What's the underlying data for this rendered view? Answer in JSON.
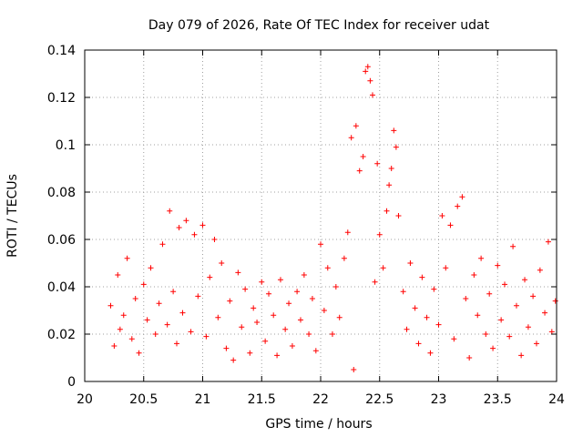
{
  "chart_data": {
    "type": "scatter",
    "title": "Day 079 of 2026, Rate Of TEC Index for receiver udat",
    "xlabel": "GPS time / hours",
    "ylabel": "ROTI / TECUs",
    "xlim": [
      20,
      24
    ],
    "ylim": [
      0,
      0.14
    ],
    "x_ticks": [
      20,
      20.5,
      21,
      21.5,
      22,
      22.5,
      23,
      23.5,
      24
    ],
    "x_tick_labels": [
      "20",
      "20.5",
      "21",
      "21.5",
      "22",
      "22.5",
      "23",
      "23.5",
      "24"
    ],
    "y_ticks": [
      0,
      0.02,
      0.04,
      0.06,
      0.08,
      0.1,
      0.12,
      0.14
    ],
    "y_tick_labels": [
      "0",
      "0.02",
      "0.04",
      "0.06",
      "0.08",
      "0.1",
      "0.12",
      "0.14"
    ],
    "grid": true,
    "marker": "+",
    "series_color": "#ff0000",
    "series": [
      {
        "name": "ROTI",
        "x_range": [
          20.2,
          24.0
        ],
        "typical_band": [
          0.01,
          0.05
        ],
        "points": [
          [
            20.22,
            0.032
          ],
          [
            20.25,
            0.015
          ],
          [
            20.28,
            0.045
          ],
          [
            20.3,
            0.022
          ],
          [
            20.33,
            0.028
          ],
          [
            20.36,
            0.052
          ],
          [
            20.4,
            0.018
          ],
          [
            20.43,
            0.035
          ],
          [
            20.46,
            0.012
          ],
          [
            20.5,
            0.041
          ],
          [
            20.53,
            0.026
          ],
          [
            20.56,
            0.048
          ],
          [
            20.6,
            0.02
          ],
          [
            20.63,
            0.033
          ],
          [
            20.66,
            0.058
          ],
          [
            20.7,
            0.024
          ],
          [
            20.72,
            0.072
          ],
          [
            20.75,
            0.038
          ],
          [
            20.78,
            0.016
          ],
          [
            20.8,
            0.065
          ],
          [
            20.83,
            0.029
          ],
          [
            20.86,
            0.068
          ],
          [
            20.9,
            0.021
          ],
          [
            20.93,
            0.062
          ],
          [
            20.96,
            0.036
          ],
          [
            21.0,
            0.066
          ],
          [
            21.03,
            0.019
          ],
          [
            21.06,
            0.044
          ],
          [
            21.1,
            0.06
          ],
          [
            21.13,
            0.027
          ],
          [
            21.16,
            0.05
          ],
          [
            21.2,
            0.014
          ],
          [
            21.23,
            0.034
          ],
          [
            21.26,
            0.009
          ],
          [
            21.3,
            0.046
          ],
          [
            21.33,
            0.023
          ],
          [
            21.36,
            0.039
          ],
          [
            21.4,
            0.012
          ],
          [
            21.43,
            0.031
          ],
          [
            21.46,
            0.025
          ],
          [
            21.5,
            0.042
          ],
          [
            21.53,
            0.017
          ],
          [
            21.56,
            0.037
          ],
          [
            21.6,
            0.028
          ],
          [
            21.63,
            0.011
          ],
          [
            21.66,
            0.043
          ],
          [
            21.7,
            0.022
          ],
          [
            21.73,
            0.033
          ],
          [
            21.76,
            0.015
          ],
          [
            21.8,
            0.038
          ],
          [
            21.83,
            0.026
          ],
          [
            21.86,
            0.045
          ],
          [
            21.9,
            0.02
          ],
          [
            21.93,
            0.035
          ],
          [
            21.96,
            0.013
          ],
          [
            22.0,
            0.058
          ],
          [
            22.03,
            0.03
          ],
          [
            22.06,
            0.048
          ],
          [
            22.1,
            0.02
          ],
          [
            22.13,
            0.04
          ],
          [
            22.16,
            0.027
          ],
          [
            22.2,
            0.052
          ],
          [
            22.23,
            0.063
          ],
          [
            22.26,
            0.103
          ],
          [
            22.28,
            0.005
          ],
          [
            22.3,
            0.108
          ],
          [
            22.33,
            0.089
          ],
          [
            22.36,
            0.095
          ],
          [
            22.38,
            0.131
          ],
          [
            22.4,
            0.133
          ],
          [
            22.42,
            0.127
          ],
          [
            22.44,
            0.121
          ],
          [
            22.46,
            0.042
          ],
          [
            22.48,
            0.092
          ],
          [
            22.5,
            0.062
          ],
          [
            22.53,
            0.048
          ],
          [
            22.56,
            0.072
          ],
          [
            22.58,
            0.083
          ],
          [
            22.6,
            0.09
          ],
          [
            22.62,
            0.106
          ],
          [
            22.64,
            0.099
          ],
          [
            22.66,
            0.07
          ],
          [
            22.7,
            0.038
          ],
          [
            22.73,
            0.022
          ],
          [
            22.76,
            0.05
          ],
          [
            22.8,
            0.031
          ],
          [
            22.83,
            0.016
          ],
          [
            22.86,
            0.044
          ],
          [
            22.9,
            0.027
          ],
          [
            22.93,
            0.012
          ],
          [
            22.96,
            0.039
          ],
          [
            23.0,
            0.024
          ],
          [
            23.03,
            0.07
          ],
          [
            23.06,
            0.048
          ],
          [
            23.1,
            0.066
          ],
          [
            23.13,
            0.018
          ],
          [
            23.16,
            0.074
          ],
          [
            23.2,
            0.078
          ],
          [
            23.23,
            0.035
          ],
          [
            23.26,
            0.01
          ],
          [
            23.3,
            0.045
          ],
          [
            23.33,
            0.028
          ],
          [
            23.36,
            0.052
          ],
          [
            23.4,
            0.02
          ],
          [
            23.43,
            0.037
          ],
          [
            23.46,
            0.014
          ],
          [
            23.5,
            0.049
          ],
          [
            23.53,
            0.026
          ],
          [
            23.56,
            0.041
          ],
          [
            23.6,
            0.019
          ],
          [
            23.63,
            0.057
          ],
          [
            23.66,
            0.032
          ],
          [
            23.7,
            0.011
          ],
          [
            23.73,
            0.043
          ],
          [
            23.76,
            0.023
          ],
          [
            23.8,
            0.036
          ],
          [
            23.83,
            0.016
          ],
          [
            23.86,
            0.047
          ],
          [
            23.9,
            0.029
          ],
          [
            23.93,
            0.059
          ],
          [
            23.96,
            0.021
          ],
          [
            23.99,
            0.034
          ]
        ]
      }
    ]
  }
}
